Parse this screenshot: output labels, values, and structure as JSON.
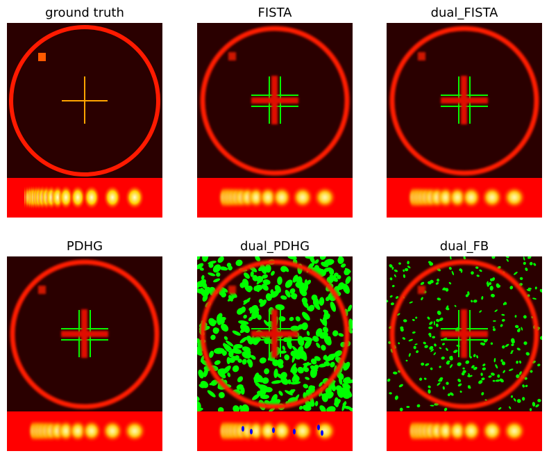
{
  "figure": {
    "panels": [
      {
        "title": "ground truth",
        "kind": "truth"
      },
      {
        "title": "FISTA",
        "kind": "recon"
      },
      {
        "title": "dual_FISTA",
        "kind": "recon"
      },
      {
        "title": "PDHG",
        "kind": "recon"
      },
      {
        "title": "dual_PDHG",
        "kind": "noisy"
      },
      {
        "title": "dual_FB",
        "kind": "speckle"
      }
    ],
    "colors": {
      "background": "#2a0000",
      "ring": "#ff1a00",
      "cross": "#ffa500",
      "square": "#ff5a00",
      "negative": "#00ff00",
      "strip": "#ff0000",
      "strip_peak": "#ffffd0",
      "low": "#0000ff"
    }
  }
}
